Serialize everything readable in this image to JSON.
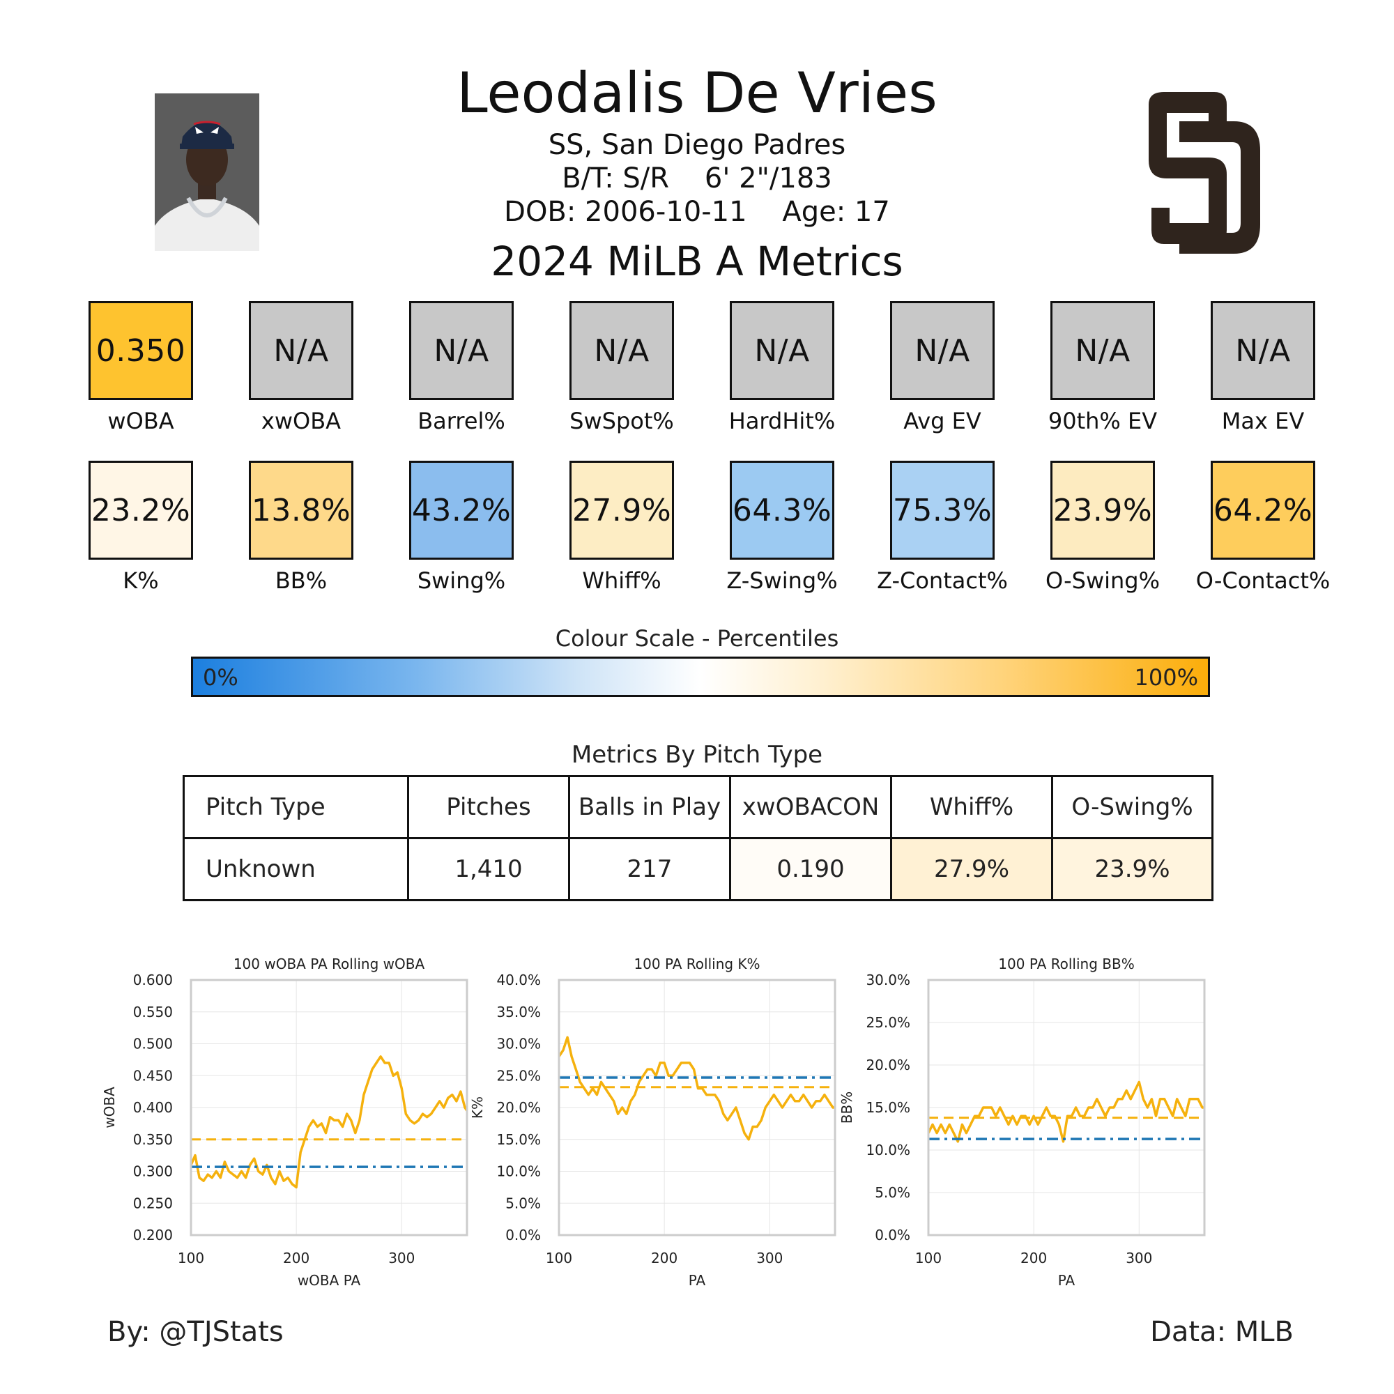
{
  "header": {
    "name": "Leodalis De Vries",
    "position_team": "SS, San Diego Padres",
    "bats_throws": "B/T: S/R    6' 2\"/183",
    "dob_age": "DOB: 2006-10-11    Age: 17",
    "season_title": "2024 MiLB A Metrics"
  },
  "colors": {
    "team_logo": "#2f241d",
    "league_avg_line": "#1f77b4",
    "player_line": "#f5b10d",
    "na_tile": "#c8c8c8"
  },
  "metrics_row1": [
    {
      "label": "wOBA",
      "value": "0.350",
      "color": "#fec32f"
    },
    {
      "label": "xwOBA",
      "value": "N/A",
      "color": "#c8c8c8"
    },
    {
      "label": "Barrel%",
      "value": "N/A",
      "color": "#c8c8c8"
    },
    {
      "label": "SwSpot%",
      "value": "N/A",
      "color": "#c8c8c8"
    },
    {
      "label": "HardHit%",
      "value": "N/A",
      "color": "#c8c8c8"
    },
    {
      "label": "Avg EV",
      "value": "N/A",
      "color": "#c8c8c8"
    },
    {
      "label": "90th% EV",
      "value": "N/A",
      "color": "#c8c8c8"
    },
    {
      "label": "Max EV",
      "value": "N/A",
      "color": "#c8c8c8"
    }
  ],
  "metrics_row2": [
    {
      "label": "K%",
      "value": "23.2%",
      "color": "#fff6e6"
    },
    {
      "label": "BB%",
      "value": "13.8%",
      "color": "#fed98a"
    },
    {
      "label": "Swing%",
      "value": "43.2%",
      "color": "#8bbdee"
    },
    {
      "label": "Whiff%",
      "value": "27.9%",
      "color": "#fdedc4"
    },
    {
      "label": "Z-Swing%",
      "value": "64.3%",
      "color": "#9ccaf2"
    },
    {
      "label": "Z-Contact%",
      "value": "75.3%",
      "color": "#aad1f3"
    },
    {
      "label": "O-Swing%",
      "value": "23.9%",
      "color": "#fdebc0"
    },
    {
      "label": "O-Contact%",
      "value": "64.2%",
      "color": "#fecd5c"
    }
  ],
  "colour_scale": {
    "title": "Colour Scale - Percentiles",
    "min_label": "0%",
    "max_label": "100%"
  },
  "pitch_table": {
    "title": "Metrics By Pitch Type",
    "headers": [
      "Pitch Type",
      "Pitches",
      "Balls in Play",
      "xwOBACON",
      "Whiff%",
      "O-Swing%"
    ],
    "rows": [
      {
        "cells": [
          "Unknown",
          "1,410",
          "217",
          "0.190",
          "27.9%",
          "23.9%"
        ],
        "cell_colors": [
          "#ffffff",
          "#ffffff",
          "#ffffff",
          "#fffcf7",
          "#fff1d4",
          "#fff4de"
        ]
      }
    ]
  },
  "chart_data": [
    {
      "type": "line",
      "title": "100 wOBA PA Rolling wOBA",
      "xlabel": "wOBA PA",
      "ylabel": "wOBA",
      "xlim": [
        100,
        362
      ],
      "ylim": [
        0.2,
        0.6
      ],
      "xticks": [
        100,
        200,
        300
      ],
      "xtick_labels": [
        "100",
        "200",
        "300"
      ],
      "yticks": [
        0.2,
        0.25,
        0.3,
        0.35,
        0.4,
        0.45,
        0.5,
        0.55,
        0.6
      ],
      "ytick_labels": [
        "0.200",
        "0.250",
        "0.300",
        "0.350",
        "0.400",
        "0.450",
        "0.500",
        "0.550",
        "0.600"
      ],
      "grid": true,
      "series": [
        {
          "values_x": [
            100,
            104,
            108,
            112,
            116,
            120,
            124,
            128,
            132,
            136,
            140,
            144,
            148,
            152,
            156,
            160,
            164,
            168,
            172,
            176,
            180,
            184,
            188,
            192,
            196,
            200,
            204,
            208,
            212,
            216,
            220,
            224,
            228,
            232,
            236,
            240,
            244,
            248,
            252,
            256,
            260,
            264,
            268,
            272,
            276,
            280,
            284,
            288,
            292,
            296,
            300,
            304,
            308,
            312,
            316,
            320,
            324,
            328,
            332,
            336,
            340,
            344,
            348,
            352,
            356,
            360,
            362
          ],
          "values_y": [
            0.31,
            0.325,
            0.29,
            0.285,
            0.295,
            0.29,
            0.3,
            0.29,
            0.315,
            0.3,
            0.295,
            0.29,
            0.3,
            0.29,
            0.31,
            0.32,
            0.3,
            0.295,
            0.31,
            0.29,
            0.28,
            0.3,
            0.285,
            0.29,
            0.28,
            0.275,
            0.33,
            0.35,
            0.37,
            0.38,
            0.37,
            0.375,
            0.36,
            0.385,
            0.38,
            0.38,
            0.37,
            0.39,
            0.38,
            0.36,
            0.38,
            0.42,
            0.44,
            0.46,
            0.47,
            0.48,
            0.47,
            0.47,
            0.45,
            0.455,
            0.43,
            0.39,
            0.38,
            0.375,
            0.38,
            0.39,
            0.385,
            0.39,
            0.4,
            0.41,
            0.4,
            0.415,
            0.42,
            0.41,
            0.425,
            0.4,
            0.395
          ]
        },
        {
          "values_x": [
            100,
            362
          ],
          "values_y": [
            0.35,
            0.35
          ]
        },
        {
          "values_x": [
            100,
            362
          ],
          "values_y": [
            0.307,
            0.307
          ]
        }
      ]
    },
    {
      "type": "line",
      "title": "100 PA Rolling K%",
      "xlabel": "PA",
      "ylabel": "K%",
      "xlim": [
        100,
        362
      ],
      "ylim": [
        0,
        40
      ],
      "xticks": [
        100,
        200,
        300
      ],
      "xtick_labels": [
        "100",
        "200",
        "300"
      ],
      "yticks": [
        0,
        5,
        10,
        15,
        20,
        25,
        30,
        35,
        40
      ],
      "ytick_labels": [
        "0.0%",
        "5.0%",
        "10.0%",
        "15.0%",
        "20.0%",
        "25.0%",
        "30.0%",
        "35.0%",
        "40.0%"
      ],
      "grid": true,
      "series": [
        {
          "values_x": [
            100,
            104,
            108,
            112,
            116,
            120,
            124,
            128,
            132,
            136,
            140,
            144,
            148,
            152,
            156,
            160,
            164,
            168,
            172,
            176,
            180,
            184,
            188,
            192,
            196,
            200,
            204,
            208,
            212,
            216,
            220,
            224,
            228,
            232,
            236,
            240,
            244,
            248,
            252,
            256,
            260,
            264,
            268,
            272,
            276,
            280,
            284,
            288,
            292,
            296,
            300,
            304,
            308,
            312,
            316,
            320,
            324,
            328,
            332,
            336,
            340,
            344,
            348,
            352,
            356,
            360,
            362
          ],
          "values_y": [
            28,
            29,
            31,
            28,
            26,
            24,
            23,
            22,
            23,
            22,
            24,
            23,
            22,
            21,
            19,
            20,
            19,
            21,
            22,
            24,
            25,
            26,
            26,
            25,
            27,
            27,
            25,
            25,
            26,
            27,
            27,
            27,
            26,
            23,
            23,
            22,
            22,
            22,
            21,
            19,
            18,
            19,
            20,
            18,
            16,
            15,
            17,
            17,
            18,
            20,
            21,
            22,
            21,
            20,
            21,
            22,
            21,
            21,
            22,
            21,
            20,
            21,
            21,
            22,
            21,
            20,
            20
          ]
        },
        {
          "values_x": [
            100,
            362
          ],
          "values_y": [
            23.2,
            23.2
          ]
        },
        {
          "values_x": [
            100,
            362
          ],
          "values_y": [
            24.7,
            24.7
          ]
        }
      ]
    },
    {
      "type": "line",
      "title": "100 PA Rolling BB%",
      "xlabel": "PA",
      "ylabel": "BB%",
      "xlim": [
        100,
        362
      ],
      "ylim": [
        0,
        30
      ],
      "xticks": [
        100,
        200,
        300
      ],
      "xtick_labels": [
        "100",
        "200",
        "300"
      ],
      "yticks": [
        0,
        5,
        10,
        15,
        20,
        25,
        30
      ],
      "ytick_labels": [
        "0.0%",
        "5.0%",
        "10.0%",
        "15.0%",
        "20.0%",
        "25.0%",
        "30.0%"
      ],
      "grid": true,
      "series": [
        {
          "values_x": [
            100,
            104,
            108,
            112,
            116,
            120,
            124,
            128,
            132,
            136,
            140,
            144,
            148,
            152,
            156,
            160,
            164,
            168,
            172,
            176,
            180,
            184,
            188,
            192,
            196,
            200,
            204,
            208,
            212,
            216,
            220,
            224,
            228,
            232,
            236,
            240,
            244,
            248,
            252,
            256,
            260,
            264,
            268,
            272,
            276,
            280,
            284,
            288,
            292,
            296,
            300,
            304,
            308,
            312,
            316,
            320,
            324,
            328,
            332,
            336,
            340,
            344,
            348,
            352,
            356,
            360,
            362
          ],
          "values_y": [
            12,
            13,
            12,
            13,
            12,
            13,
            12,
            11,
            13,
            12,
            13,
            14,
            14,
            15,
            15,
            15,
            14,
            15,
            14,
            13,
            14,
            13,
            14,
            14,
            13,
            14,
            13,
            14,
            15,
            14,
            14,
            13,
            11,
            14,
            14,
            15,
            14,
            14,
            15,
            15,
            16,
            15,
            14,
            15,
            15,
            16,
            16,
            17,
            16,
            17,
            18,
            16,
            15,
            16,
            14,
            16,
            16,
            15,
            14,
            16,
            15,
            14,
            16,
            16,
            16,
            15,
            15
          ]
        },
        {
          "values_x": [
            100,
            362
          ],
          "values_y": [
            13.8,
            13.8
          ]
        },
        {
          "values_x": [
            100,
            362
          ],
          "values_y": [
            11.3,
            11.3
          ]
        }
      ]
    }
  ],
  "footer": {
    "left": "By: @TJStats",
    "right": "Data: MLB"
  }
}
